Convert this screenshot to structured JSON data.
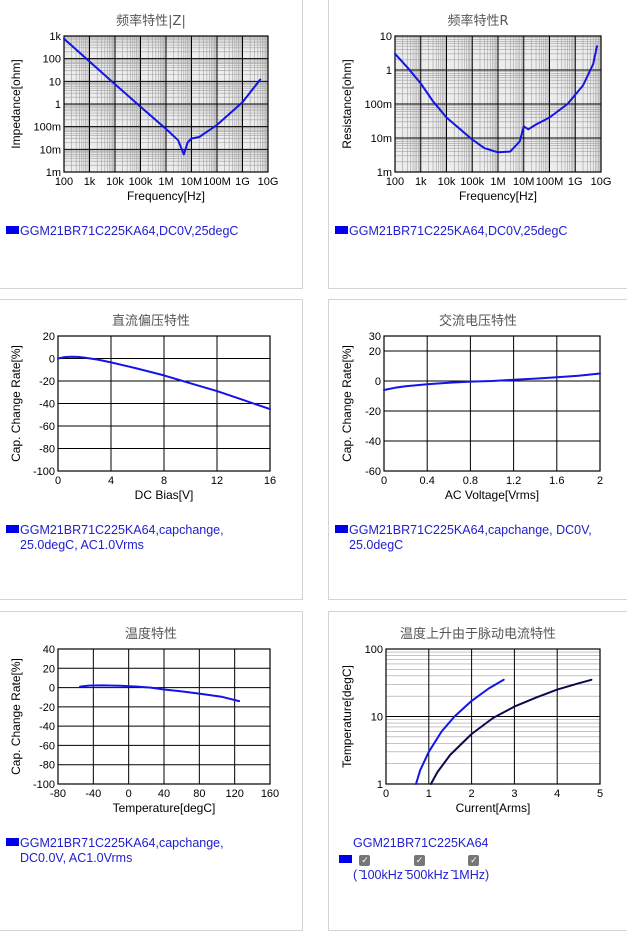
{
  "colors": {
    "curve": "#1414e6",
    "curve_dark": "#0a0a50",
    "grid": "#000000",
    "minor_grid": "#a0a0a0",
    "legend": "#2020d0",
    "swatch": "#0000ee"
  },
  "panels": {
    "z": {
      "title": "频率特性|Z|",
      "xlabel": "Frequency[Hz]",
      "ylabel": "Impedance[ohm]",
      "legend": "GGM21BR71C225KA64,DC0V,25degC",
      "xticks": [
        "100",
        "1k",
        "10k",
        "100k",
        "1M",
        "10M",
        "100M",
        "1G",
        "10G"
      ],
      "yticks": [
        "1k",
        "100",
        "10",
        "1",
        "100m",
        "10m",
        "1m"
      ]
    },
    "r": {
      "title": "频率特性R",
      "xlabel": "Frequency[Hz]",
      "ylabel": "Resistance[ohm]",
      "legend": "GGM21BR71C225KA64,DC0V,25degC",
      "xticks": [
        "100",
        "1k",
        "10k",
        "100k",
        "1M",
        "10M",
        "100M",
        "1G",
        "10G"
      ],
      "yticks": [
        "10",
        "1",
        "100m",
        "10m",
        "1m"
      ]
    },
    "dc": {
      "title": "直流偏压特性",
      "xlabel": "DC Bias[V]",
      "ylabel": "Cap. Change Rate[%]",
      "legend": [
        "GGM21BR71C225KA64,capchange,",
        "25.0degC, AC1.0Vrms"
      ],
      "xticks": [
        "0",
        "4",
        "8",
        "12",
        "16"
      ],
      "yticks": [
        "20",
        "0",
        "-20",
        "-40",
        "-60",
        "-80",
        "-100"
      ]
    },
    "ac": {
      "title": "交流电压特性",
      "xlabel": "AC Voltage[Vrms]",
      "ylabel": "Cap. Change Rate[%]",
      "legend": [
        "GGM21BR71C225KA64,capchange, DC0V,",
        "25.0degC"
      ],
      "xticks": [
        "0",
        "0.4",
        "0.8",
        "1.2",
        "1.6",
        "2"
      ],
      "yticks": [
        "30",
        "20",
        "0",
        "-20",
        "-40",
        "-60"
      ]
    },
    "temp": {
      "title": "温度特性",
      "xlabel": "Temperature[degC]",
      "ylabel": "Cap. Change Rate[%]",
      "legend": [
        "GGM21BR71C225KA64,capchange,",
        "DC0.0V, AC1.0Vrms"
      ],
      "xticks": [
        "-80",
        "-40",
        "0",
        "40",
        "80",
        "120",
        "160"
      ],
      "yticks": [
        "40",
        "20",
        "0",
        "-20",
        "-40",
        "-60",
        "-80",
        "-100"
      ]
    },
    "rise": {
      "title": "温度上升由于脉动电流特性",
      "xlabel": "Current[Arms]",
      "ylabel": "Temperature[degC]",
      "legend": "GGM21BR71C225KA64",
      "xticks": [
        "0",
        "1",
        "2",
        "3",
        "4",
        "5"
      ],
      "yticks": [
        "100",
        "10",
        "1"
      ],
      "checkbox_labels": [
        "100kHz",
        "500kHz",
        "1MHz"
      ],
      "checkbox_text": "( ̄100kHz ̄500kHz ̄1MHz)"
    }
  },
  "chart_data": [
    {
      "type": "line",
      "title": "频率特性|Z|",
      "xlabel": "Frequency[Hz]",
      "ylabel": "Impedance[ohm]",
      "xscale": "log",
      "yscale": "log",
      "xlim": [
        100,
        10000000000
      ],
      "ylim": [
        0.001,
        1000
      ],
      "grid": true,
      "series": [
        {
          "name": "GGM21BR71C225KA64,DC0V,25degC",
          "x": [
            100,
            1000,
            10000,
            100000,
            1000000,
            3000000,
            5000000,
            7000000,
            10000000,
            20000000,
            50000000,
            100000000,
            1000000000,
            5000000000
          ],
          "y": [
            750,
            75,
            7.5,
            0.75,
            0.08,
            0.025,
            0.006,
            0.02,
            0.03,
            0.035,
            0.07,
            0.12,
            1.2,
            12
          ]
        }
      ]
    },
    {
      "type": "line",
      "title": "频率特性R",
      "xlabel": "Frequency[Hz]",
      "ylabel": "Resistance[ohm]",
      "xscale": "log",
      "yscale": "log",
      "xlim": [
        100,
        10000000000
      ],
      "ylim": [
        0.001,
        10
      ],
      "grid": true,
      "series": [
        {
          "name": "GGM21BR71C225KA64,DC0V,25degC",
          "x": [
            100,
            300,
            1000,
            3000,
            10000,
            100000,
            300000,
            1000000,
            3000000,
            7000000,
            10000000,
            15000000,
            30000000,
            100000000,
            500000000,
            2000000000,
            5000000000,
            7000000000
          ],
          "y": [
            3,
            1.2,
            0.4,
            0.12,
            0.04,
            0.009,
            0.005,
            0.0038,
            0.004,
            0.008,
            0.022,
            0.018,
            0.025,
            0.04,
            0.1,
            0.35,
            1.5,
            5
          ]
        }
      ]
    },
    {
      "type": "line",
      "title": "直流偏压特性",
      "xlabel": "DC Bias[V]",
      "ylabel": "Cap. Change Rate[%]",
      "xlim": [
        0,
        16
      ],
      "ylim": [
        -100,
        20
      ],
      "grid": true,
      "series": [
        {
          "name": "GGM21BR71C225KA64,capchange,25.0degC, AC1.0Vrms",
          "x": [
            0,
            0.5,
            1,
            1.5,
            2,
            3,
            4,
            6,
            8,
            10,
            12,
            14,
            16
          ],
          "y": [
            0,
            1.2,
            1.6,
            1.4,
            0.8,
            -1,
            -3.5,
            -9,
            -15,
            -22,
            -29,
            -37,
            -45
          ]
        }
      ]
    },
    {
      "type": "line",
      "title": "交流电压特性",
      "xlabel": "AC Voltage[Vrms]",
      "ylabel": "Cap. Change Rate[%]",
      "xlim": [
        0,
        2
      ],
      "ylim": [
        -60,
        30
      ],
      "grid": true,
      "series": [
        {
          "name": "GGM21BR71C225KA64,capchange, DC0V,25.0degC",
          "x": [
            0,
            0.1,
            0.2,
            0.4,
            0.6,
            0.8,
            1.0,
            1.2,
            1.4,
            1.6,
            1.8,
            2.0
          ],
          "y": [
            -6,
            -4.5,
            -3.5,
            -2.2,
            -1.2,
            -0.4,
            0,
            0.8,
            1.6,
            2.5,
            3.5,
            5
          ]
        }
      ]
    },
    {
      "type": "line",
      "title": "温度特性",
      "xlabel": "Temperature[degC]",
      "ylabel": "Cap. Change Rate[%]",
      "xlim": [
        -80,
        160
      ],
      "ylim": [
        -100,
        40
      ],
      "grid": true,
      "series": [
        {
          "name": "GGM21BR71C225KA64,capchange,DC0.0V, AC1.0Vrms",
          "x": [
            -55,
            -45,
            -30,
            -10,
            10,
            25,
            40,
            60,
            85,
            105,
            125
          ],
          "y": [
            1,
            2,
            2.3,
            1.8,
            1,
            0,
            -2,
            -4,
            -7,
            -9.5,
            -14
          ]
        }
      ]
    },
    {
      "type": "line",
      "title": "温度上升由于脉动电流特性",
      "xlabel": "Current[Arms]",
      "ylabel": "Temperature[degC]",
      "xlim": [
        0,
        5
      ],
      "ylim": [
        1,
        100
      ],
      "yscale": "log",
      "grid": true,
      "series": [
        {
          "name": "100kHz",
          "x": [
            0.7,
            0.8,
            1.0,
            1.3,
            1.6,
            2.0,
            2.4,
            2.75
          ],
          "y": [
            1,
            1.6,
            3,
            6,
            10,
            17,
            26,
            35
          ],
          "color": "#1414e6"
        },
        {
          "name": "500kHz",
          "x": [
            1.05,
            1.2,
            1.5,
            2.0,
            2.5,
            3.0,
            3.5,
            4.0,
            4.5,
            4.8
          ],
          "y": [
            1,
            1.5,
            2.7,
            5.5,
            9.5,
            14,
            19,
            25,
            31,
            35
          ],
          "color": "#0a0a50"
        }
      ]
    }
  ]
}
